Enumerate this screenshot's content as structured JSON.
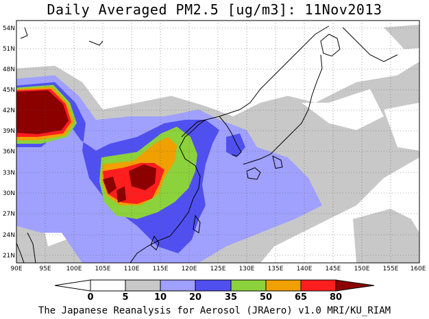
{
  "title": "Daily Averaged PM2.5 [ug/m3]: 11Nov2013",
  "footer": "The Japanese Reanalysis for Aerosol (JRAero) v1.0 MRI/KU_RIAM",
  "axes": {
    "lon_labels": [
      "90E",
      "95E",
      "100E",
      "105E",
      "110E",
      "115E",
      "120E",
      "125E",
      "130E",
      "135E",
      "140E",
      "145E",
      "150E",
      "155E",
      "160E"
    ],
    "lat_labels": [
      "54N",
      "51N",
      "48N",
      "45N",
      "42N",
      "39N",
      "36N",
      "33N",
      "30N",
      "27N",
      "24N",
      "21N"
    ]
  },
  "colorbar": {
    "labels": [
      "0",
      "5",
      "10",
      "20",
      "35",
      "50",
      "65",
      "80"
    ],
    "colors": [
      "#ffffff",
      "#c8c8c8",
      "#a0a0ff",
      "#5050f0",
      "#8cd23c",
      "#f0a000",
      "#ff1e1e",
      "#8c0000"
    ]
  },
  "chart_data": {
    "type": "heatmap",
    "variable": "Daily Averaged PM2.5",
    "units": "ug/m3",
    "date": "11Nov2013",
    "lon_range": [
      90,
      160
    ],
    "lat_range": [
      20,
      55
    ],
    "levels": [
      0,
      5,
      10,
      20,
      35,
      50,
      65,
      80
    ]
  }
}
